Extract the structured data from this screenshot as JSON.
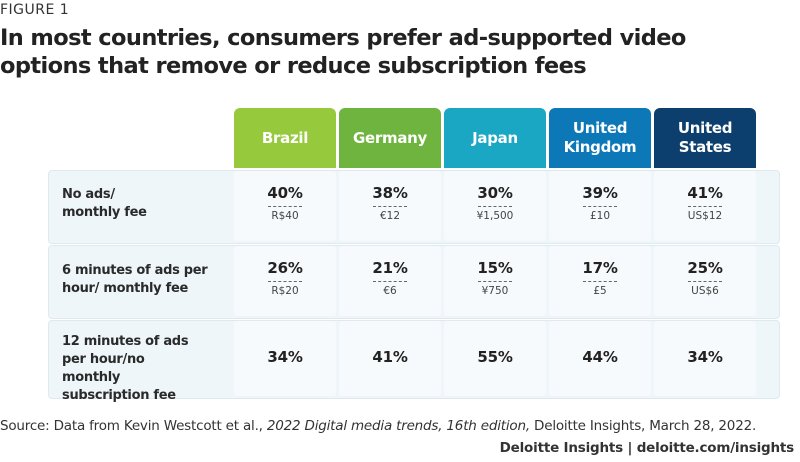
{
  "figure_label": "FIGURE 1",
  "chart_data": {
    "type": "table",
    "title": "In most countries, consumers prefer ad-supported video options that remove or reduce subscription fees",
    "columns": [
      {
        "name": "Brazil",
        "color": "#97c93d"
      },
      {
        "name": "Germany",
        "color": "#6fb43f"
      },
      {
        "name": "Japan",
        "color": "#1aa7c4"
      },
      {
        "name": "United Kingdom",
        "color": "#0d78b8"
      },
      {
        "name": "United States",
        "color": "#0d3f6e"
      }
    ],
    "rows": [
      {
        "label": "No ads/ monthly fee",
        "values": [
          "40%",
          "38%",
          "30%",
          "39%",
          "41%"
        ],
        "fees": [
          "R$40",
          "€12",
          "¥1,500",
          "£10",
          "US$12"
        ]
      },
      {
        "label": "6 minutes of ads per hour/ monthly fee",
        "values": [
          "26%",
          "21%",
          "15%",
          "17%",
          "25%"
        ],
        "fees": [
          "R$20",
          "€6",
          "¥750",
          "£5",
          "US$6"
        ]
      },
      {
        "label": "12 minutes of ads per hour/no monthly subscription fee",
        "values": [
          "34%",
          "41%",
          "55%",
          "44%",
          "34%"
        ],
        "fees": []
      }
    ]
  },
  "source": {
    "prefix": "Source: Data from Kevin Westcott et al., ",
    "italic": "2022 Digital media trends, 16th edition,",
    "suffix": " Deloitte Insights, March 28, 2022."
  },
  "footer": "Deloitte Insights | deloitte.com/insights"
}
